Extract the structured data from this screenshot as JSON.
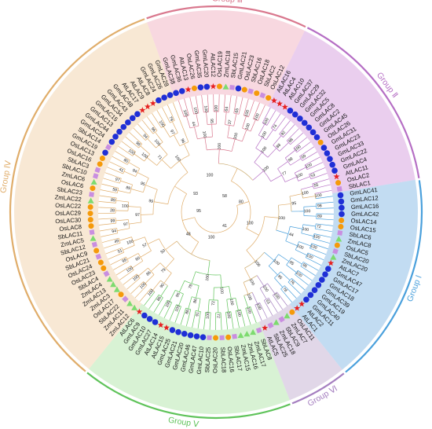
{
  "groups": [
    {
      "id": "I",
      "label": "Group Ⅰ",
      "color": "#8fc0e8",
      "line": "#4aa0dc"
    },
    {
      "id": "II",
      "label": "Group Ⅱ",
      "color": "#d8a6e0",
      "line": "#b56ec4"
    },
    {
      "id": "III",
      "label": "Group Ⅲ",
      "color": "#f2b8c6",
      "line": "#d9788e"
    },
    {
      "id": "IV",
      "label": "Group Ⅳ",
      "color": "#f3d6b0",
      "line": "#e0ad6a"
    },
    {
      "id": "V",
      "label": "Group Ⅴ",
      "color": "#b8e8b0",
      "line": "#5fc35a"
    },
    {
      "id": "VI",
      "label": "Group Ⅵ",
      "color": "#c9b6d6",
      "line": "#a57fc0"
    }
  ],
  "marker_colors": {
    "Gm": "#1f2fd6",
    "At": "#e62020",
    "Os": "#f59a0a",
    "Sb": "#c98ee0",
    "Zm": "#7ddb6f"
  },
  "tree": {
    "leaves": [
      {
        "name": "GmLAC38",
        "sp": "Gm",
        "g": "III"
      },
      {
        "name": "GmLAC36",
        "sp": "Gm",
        "g": "III"
      },
      {
        "name": "AtLAC13",
        "sp": "At",
        "g": "III"
      },
      {
        "name": "OsLAC26",
        "sp": "Os",
        "g": "III"
      },
      {
        "name": "GmLAC35",
        "sp": "Gm",
        "g": "III"
      },
      {
        "name": "GmLAC20",
        "sp": "Gm",
        "g": "III"
      },
      {
        "name": "AtLAC12",
        "sp": "At",
        "g": "III"
      },
      {
        "name": "OsLAC19",
        "sp": "Os",
        "g": "III"
      },
      {
        "name": "ZmLAC18",
        "sp": "Zm",
        "g": "III"
      },
      {
        "name": "SbLAC15",
        "sp": "Sb",
        "g": "III"
      },
      {
        "name": "GmLAC21",
        "sp": "Gm",
        "g": "III"
      },
      {
        "name": "OsLAC23",
        "sp": "Os",
        "g": "III"
      },
      {
        "name": "SbLAC16",
        "sp": "Sb",
        "g": "III"
      },
      {
        "name": "OsLAC18",
        "sp": "Os",
        "g": "III"
      },
      {
        "name": "SbLAC2",
        "sp": "Sb",
        "g": "III"
      },
      {
        "name": "OsLAC12",
        "sp": "Os",
        "g": "III"
      },
      {
        "name": "AtLAC16",
        "sp": "At",
        "g": "II"
      },
      {
        "name": "AtLAC4",
        "sp": "At",
        "g": "II"
      },
      {
        "name": "AtLAC10",
        "sp": "At",
        "g": "II"
      },
      {
        "name": "GmLAC37",
        "sp": "Gm",
        "g": "II"
      },
      {
        "name": "GmLAC29",
        "sp": "Gm",
        "g": "II"
      },
      {
        "name": "GmLAC32",
        "sp": "Gm",
        "g": "II"
      },
      {
        "name": "GmLAC5",
        "sp": "Gm",
        "g": "II"
      },
      {
        "name": "GmLAC8",
        "sp": "Gm",
        "g": "II"
      },
      {
        "name": "GmLAC2",
        "sp": "Gm",
        "g": "II"
      },
      {
        "name": "GmLAC45",
        "sp": "Gm",
        "g": "II"
      },
      {
        "name": "OsLAC26",
        "sp": "Os",
        "g": "II"
      },
      {
        "name": "GmLAC31",
        "sp": "Gm",
        "g": "II"
      },
      {
        "name": "GmLAC23",
        "sp": "Gm",
        "g": "II"
      },
      {
        "name": "GmLAC33",
        "sp": "Gm",
        "g": "II"
      },
      {
        "name": "GmLAC22",
        "sp": "Gm",
        "g": "II"
      },
      {
        "name": "GmLAC4",
        "sp": "Gm",
        "g": "II"
      },
      {
        "name": "AtLAC11",
        "sp": "At",
        "g": "II"
      },
      {
        "name": "OsLAC2",
        "sp": "Os",
        "g": "II"
      },
      {
        "name": "SbLAC1",
        "sp": "Sb",
        "g": "II"
      },
      {
        "name": "GmLAC41",
        "sp": "Gm",
        "g": "I"
      },
      {
        "name": "GmLAC12",
        "sp": "Gm",
        "g": "I"
      },
      {
        "name": "GmLAC16",
        "sp": "Gm",
        "g": "I"
      },
      {
        "name": "GmLAC42",
        "sp": "Gm",
        "g": "I"
      },
      {
        "name": "OsLAC14",
        "sp": "Os",
        "g": "I"
      },
      {
        "name": "OsLAC15",
        "sp": "Os",
        "g": "I"
      },
      {
        "name": "SbLAC6",
        "sp": "Sb",
        "g": "I"
      },
      {
        "name": "ZmLAC8",
        "sp": "Zm",
        "g": "I"
      },
      {
        "name": "OsLAC5",
        "sp": "Os",
        "g": "I"
      },
      {
        "name": "SbLAC20",
        "sp": "Sb",
        "g": "I"
      },
      {
        "name": "ZmLAC20",
        "sp": "Zm",
        "g": "I"
      },
      {
        "name": "AtLAC7",
        "sp": "At",
        "g": "I"
      },
      {
        "name": "GmLAC47",
        "sp": "Gm",
        "g": "I"
      },
      {
        "name": "GmLAC17",
        "sp": "Gm",
        "g": "I"
      },
      {
        "name": "GmLAC18",
        "sp": "Gm",
        "g": "I"
      },
      {
        "name": "GmLAC39",
        "sp": "Gm",
        "g": "I"
      },
      {
        "name": "GmLAC19",
        "sp": "Gm",
        "g": "I"
      },
      {
        "name": "GmLAC40",
        "sp": "Gm",
        "g": "I"
      },
      {
        "name": "GmLAC11",
        "sp": "Gm",
        "g": "I"
      },
      {
        "name": "AtLAC2",
        "sp": "At",
        "g": "I"
      },
      {
        "name": "AtLAC1",
        "sp": "At",
        "g": "I"
      },
      {
        "name": "OsLAC11",
        "sp": "Os",
        "g": "VI"
      },
      {
        "name": "ZmLAC7",
        "sp": "Zm",
        "g": "VI"
      },
      {
        "name": "SbLAC9",
        "sp": "Sb",
        "g": "VI"
      },
      {
        "name": "ZmLAC18",
        "sp": "Zm",
        "g": "VI"
      },
      {
        "name": "SbLAC25",
        "sp": "Sb",
        "g": "VI"
      },
      {
        "name": "AtLAC5",
        "sp": "At",
        "g": "VI"
      },
      {
        "name": "SbLAC8",
        "sp": "Sb",
        "g": "V"
      },
      {
        "name": "ZmLAC17",
        "sp": "Zm",
        "g": "V"
      },
      {
        "name": "ZmLAC16",
        "sp": "Zm",
        "g": "V"
      },
      {
        "name": "ZmLAC15",
        "sp": "Zm",
        "g": "V"
      },
      {
        "name": "SbLAC17",
        "sp": "Sb",
        "g": "V"
      },
      {
        "name": "OsLAC16",
        "sp": "Os",
        "g": "V"
      },
      {
        "name": "SbLAC18",
        "sp": "Sb",
        "g": "V"
      },
      {
        "name": "OsLAC20",
        "sp": "Os",
        "g": "V"
      },
      {
        "name": "SbLAC25",
        "sp": "Sb",
        "g": "V"
      },
      {
        "name": "GmLAC10",
        "sp": "Gm",
        "g": "V"
      },
      {
        "name": "GmLAC47",
        "sp": "Gm",
        "g": "V"
      },
      {
        "name": "GmLAC46",
        "sp": "Gm",
        "g": "V"
      },
      {
        "name": "GmLAC20",
        "sp": "Gm",
        "g": "V"
      },
      {
        "name": "GmLAC21",
        "sp": "Gm",
        "g": "V"
      },
      {
        "name": "GmLAC25",
        "sp": "Gm",
        "g": "V"
      },
      {
        "name": "AtLAC15",
        "sp": "At",
        "g": "V"
      },
      {
        "name": "AtLAC14",
        "sp": "At",
        "g": "V"
      },
      {
        "name": "GmLAC27",
        "sp": "Gm",
        "g": "V"
      },
      {
        "name": "GmLAC10",
        "sp": "Gm",
        "g": "V"
      },
      {
        "name": "GmLAC9",
        "sp": "Gm",
        "g": "V"
      },
      {
        "name": "AtLAC6",
        "sp": "At",
        "g": "V"
      },
      {
        "name": "ZmLAC12",
        "sp": "Zm",
        "g": "IV"
      },
      {
        "name": "ZmLAC11",
        "sp": "Zm",
        "g": "IV"
      },
      {
        "name": "SbLAC22",
        "sp": "Sb",
        "g": "IV"
      },
      {
        "name": "OsLAC17",
        "sp": "Os",
        "g": "IV"
      },
      {
        "name": "ZmLAC3",
        "sp": "Zm",
        "g": "IV"
      },
      {
        "name": "ZmLAC13",
        "sp": "Zm",
        "g": "IV"
      },
      {
        "name": "ZmLAC4",
        "sp": "Zm",
        "g": "IV"
      },
      {
        "name": "SbLAC4",
        "sp": "Sb",
        "g": "IV"
      },
      {
        "name": "OsLAC23",
        "sp": "Os",
        "g": "IV"
      },
      {
        "name": "OsLAC24",
        "sp": "Os",
        "g": "IV"
      },
      {
        "name": "SbLAC21",
        "sp": "Sb",
        "g": "IV"
      },
      {
        "name": "OsLAC9",
        "sp": "Os",
        "g": "IV"
      },
      {
        "name": "SbLAC12",
        "sp": "Sb",
        "g": "IV"
      },
      {
        "name": "ZmLAC5",
        "sp": "Zm",
        "g": "IV"
      },
      {
        "name": "SbLAC11",
        "sp": "Sb",
        "g": "IV"
      },
      {
        "name": "OsLAC8",
        "sp": "Os",
        "g": "IV"
      },
      {
        "name": "OsLAC30",
        "sp": "Os",
        "g": "IV"
      },
      {
        "name": "OsLAC29",
        "sp": "Os",
        "g": "IV"
      },
      {
        "name": "OsLAC22",
        "sp": "Os",
        "g": "IV"
      },
      {
        "name": "ZmLAC22",
        "sp": "Zm",
        "g": "IV"
      },
      {
        "name": "SbLAC23",
        "sp": "Sb",
        "g": "IV"
      },
      {
        "name": "OsLAC6",
        "sp": "Os",
        "g": "IV"
      },
      {
        "name": "ZmLAC6",
        "sp": "Zm",
        "g": "IV"
      },
      {
        "name": "SbLAC10",
        "sp": "Sb",
        "g": "IV"
      },
      {
        "name": "SbLAC3",
        "sp": "Sb",
        "g": "IV"
      },
      {
        "name": "OsLAC16",
        "sp": "Os",
        "g": "IV"
      },
      {
        "name": "OsLAC13",
        "sp": "Os",
        "g": "IV"
      },
      {
        "name": "GmLAC19",
        "sp": "Gm",
        "g": "IV"
      },
      {
        "name": "SbLAC14",
        "sp": "Sb",
        "g": "IV"
      },
      {
        "name": "GmLAC24",
        "sp": "Gm",
        "g": "IV"
      },
      {
        "name": "GmLAC44",
        "sp": "Gm",
        "g": "IV"
      },
      {
        "name": "GmLAC13",
        "sp": "Gm",
        "g": "IV"
      },
      {
        "name": "GmLAC15",
        "sp": "Gm",
        "g": "IV"
      },
      {
        "name": "GmLAC34",
        "sp": "Gm",
        "g": "IV"
      },
      {
        "name": "GmLAC43",
        "sp": "Gm",
        "g": "IV"
      },
      {
        "name": "GmLAC48",
        "sp": "Gm",
        "g": "IV"
      },
      {
        "name": "AtLAC17",
        "sp": "At",
        "g": "IV"
      },
      {
        "name": "AtLAC9",
        "sp": "At",
        "g": "IV"
      },
      {
        "name": "AtLAC8",
        "sp": "At",
        "g": "IV"
      },
      {
        "name": "GmLAC24",
        "sp": "Gm",
        "g": "IV"
      },
      {
        "name": "GmLAC26",
        "sp": "Gm",
        "g": "IV"
      },
      {
        "name": "GmLAC28",
        "sp": "Gm",
        "g": "IV"
      }
    ],
    "bootstrap": [
      "100",
      "100",
      "100",
      "100",
      "64",
      "65",
      "100",
      "100",
      "100",
      "74",
      "92",
      "88",
      "100",
      "99",
      "100",
      "53",
      "55",
      "100",
      "98",
      "89",
      "72",
      "100",
      "100",
      "100",
      "95",
      "100",
      "76",
      "78",
      "100",
      "61",
      "100",
      "100",
      "100",
      "100",
      "72",
      "100",
      "91",
      "86",
      "100",
      "100",
      "86",
      "100",
      "100",
      "100",
      "100",
      "99",
      "51",
      "49",
      "94",
      "99",
      "28",
      "89",
      "59",
      "97",
      "41",
      "80",
      "100",
      "98",
      "94",
      "96",
      "100",
      "79",
      "44",
      "95",
      "37",
      "100",
      "100",
      "88",
      "98",
      "100",
      "100",
      "100",
      "100",
      "100",
      "95",
      "95",
      "100",
      "100",
      "100",
      "72",
      "86",
      "96",
      "90",
      "86",
      "60",
      "100",
      "97",
      "100",
      "89",
      "94",
      "100",
      "100",
      "97",
      "100",
      "100",
      "100",
      "77",
      "95",
      "44",
      "100",
      "100",
      "100",
      "79",
      "79",
      "57",
      "97",
      "95",
      "71",
      "96",
      "100",
      "100",
      "100",
      "100",
      "100",
      "50",
      "99",
      "100",
      "71",
      "100",
      "91",
      "100",
      "69",
      "82",
      "100",
      "75",
      "57",
      "81",
      "60",
      "91",
      "97",
      "61",
      "100",
      "100",
      "100",
      "100",
      "100",
      "91",
      "100",
      "100",
      "61",
      "90",
      "100",
      "72",
      "62",
      "100",
      "96",
      "100",
      "87",
      "78",
      "100",
      "91",
      "100",
      "100",
      "100",
      "100"
    ],
    "center_labels": [
      "58",
      "80",
      "100",
      "41",
      "100",
      "48",
      "95",
      "93",
      "100"
    ]
  }
}
